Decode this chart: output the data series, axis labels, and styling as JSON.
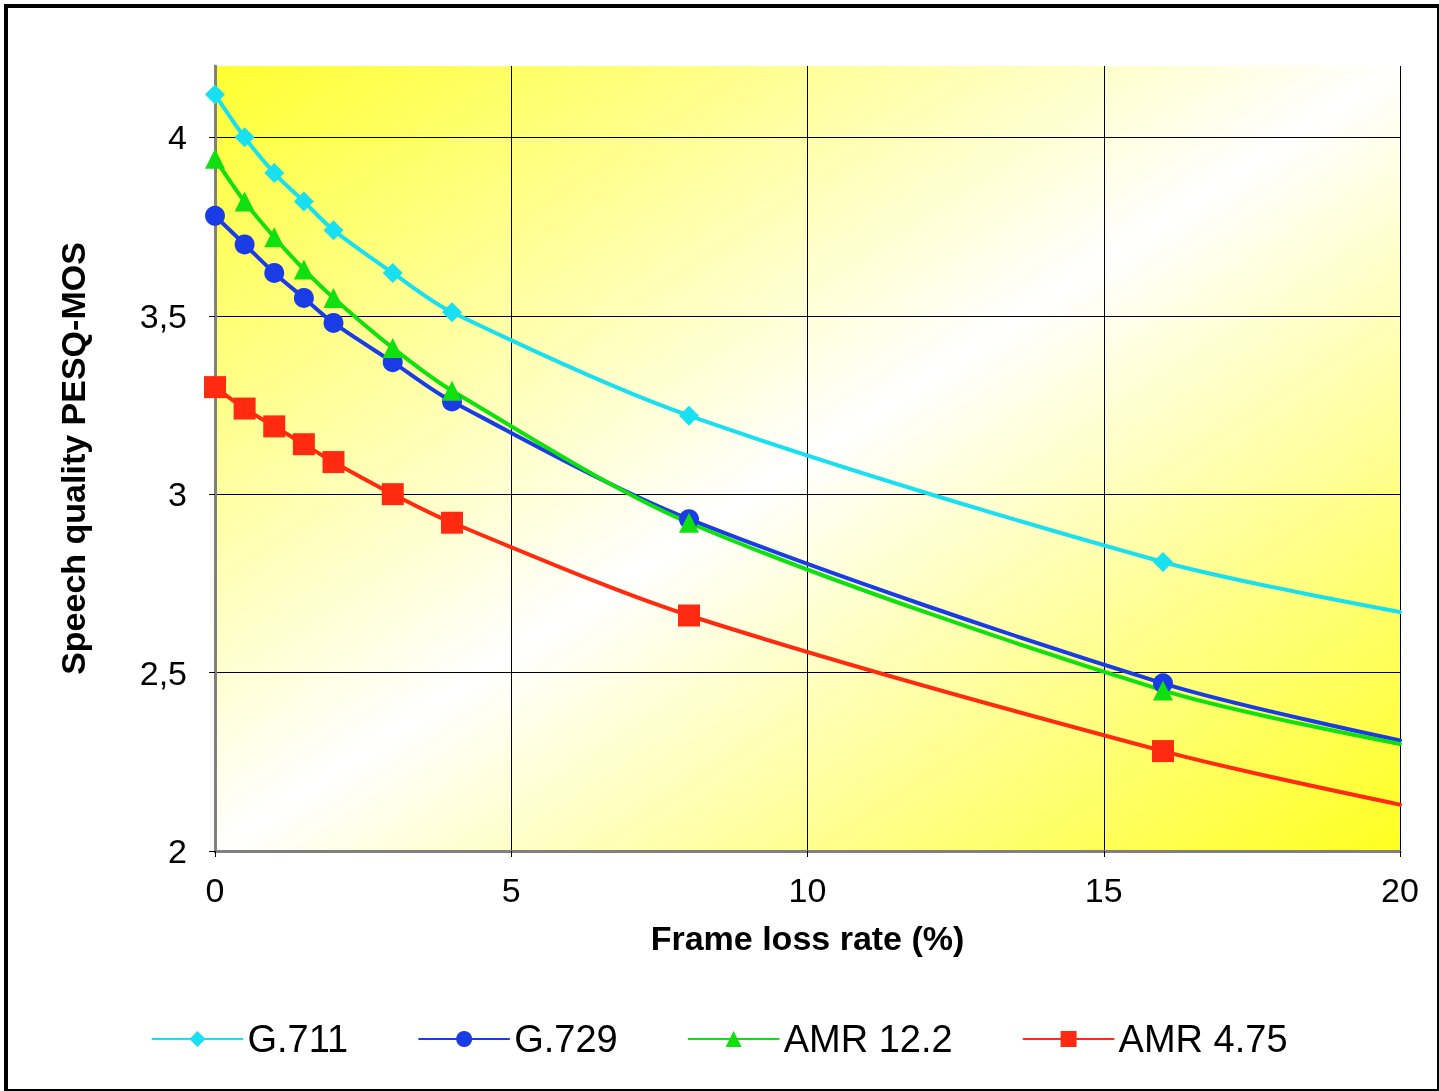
{
  "chart_data": {
    "type": "line",
    "xlabel": "Frame loss rate (%)",
    "ylabel": "Speech quality PESQ-MOS",
    "xlim": [
      0,
      20
    ],
    "xticks": [
      0,
      5,
      10,
      15,
      20
    ],
    "ylim": [
      2,
      4.2
    ],
    "yticks": [
      2,
      {
        "value": 2.5,
        "label": "2,5"
      },
      3,
      {
        "value": 3.5,
        "label": "3,5"
      },
      4
    ],
    "grid": true,
    "legend": "bottom",
    "line_style": "solid",
    "x": [
      0,
      0.5,
      1,
      1.5,
      2,
      3,
      4,
      8,
      16,
      20
    ],
    "series": [
      {
        "name": "G.711",
        "color": "#19e0f0",
        "marker": "diamond",
        "values": [
          4.12,
          4.0,
          3.9,
          3.82,
          3.74,
          3.62,
          3.51,
          3.22,
          2.81,
          2.67
        ]
      },
      {
        "name": "G.729",
        "color": "#1a3ce6",
        "marker": "circle",
        "values": [
          3.78,
          3.7,
          3.62,
          3.55,
          3.48,
          3.37,
          3.26,
          2.93,
          2.47,
          2.31
        ]
      },
      {
        "name": "AMR 12.2",
        "color": "#10e010",
        "marker": "triangle",
        "values": [
          3.94,
          3.82,
          3.72,
          3.63,
          3.55,
          3.41,
          3.29,
          2.92,
          2.45,
          2.3
        ]
      },
      {
        "name": "AMR 4.75",
        "color": "#ff2a10",
        "marker": "square",
        "values": [
          3.3,
          3.24,
          3.19,
          3.14,
          3.09,
          3.0,
          2.92,
          2.66,
          2.28,
          2.13
        ]
      }
    ]
  }
}
